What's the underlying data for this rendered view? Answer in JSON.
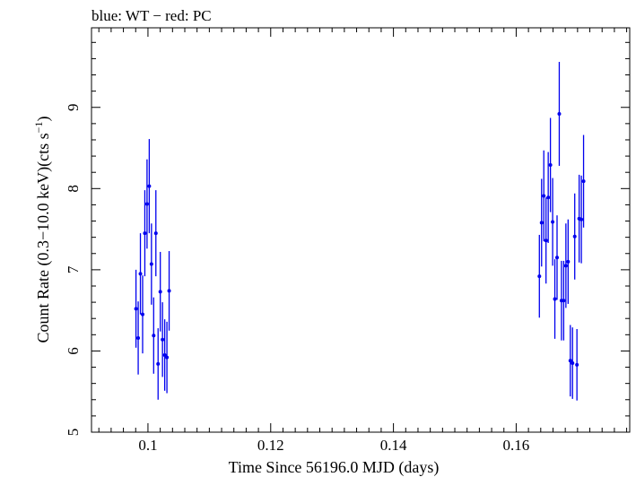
{
  "chart_data": {
    "type": "scatter",
    "title": "blue: WT − red: PC",
    "xlabel": "Time Since 56196.0 MJD (days)",
    "ylabel_main": "Count Rate (0.3−10.0 keV)(cts s",
    "ylabel_sup": "−1",
    "ylabel_end": ")",
    "xlim": [
      0.0908,
      0.1785
    ],
    "ylim": [
      5.0,
      9.98
    ],
    "xticks": [
      {
        "value": 0.1,
        "label": "0.1"
      },
      {
        "value": 0.12,
        "label": "0.12"
      },
      {
        "value": 0.14,
        "label": "0.14"
      },
      {
        "value": 0.16,
        "label": "0.16"
      }
    ],
    "yticks": [
      {
        "value": 5,
        "label": "5"
      },
      {
        "value": 6,
        "label": "6"
      },
      {
        "value": 7,
        "label": "7"
      },
      {
        "value": 8,
        "label": "8"
      },
      {
        "value": 9,
        "label": "9"
      }
    ],
    "grid": false,
    "series": [
      {
        "color": "#0000ee",
        "points": [
          {
            "x": 0.09805,
            "y": 6.52,
            "yerr": 0.48,
            "xerr": 0.00018
          },
          {
            "x": 0.09841,
            "y": 6.16,
            "yerr": 0.45,
            "xerr": 0.00018
          },
          {
            "x": 0.09877,
            "y": 6.95,
            "yerr": 0.5,
            "xerr": 0.00018
          },
          {
            "x": 0.09913,
            "y": 6.45,
            "yerr": 0.48,
            "xerr": 0.00018
          },
          {
            "x": 0.09949,
            "y": 7.45,
            "yerr": 0.53,
            "xerr": 0.00018
          },
          {
            "x": 0.09985,
            "y": 7.81,
            "yerr": 0.55,
            "xerr": 0.00018
          },
          {
            "x": 0.10021,
            "y": 8.03,
            "yerr": 0.58,
            "xerr": 0.00018
          },
          {
            "x": 0.10057,
            "y": 7.07,
            "yerr": 0.5,
            "xerr": 0.00018
          },
          {
            "x": 0.10093,
            "y": 6.19,
            "yerr": 0.47,
            "xerr": 0.00018
          },
          {
            "x": 0.10129,
            "y": 7.45,
            "yerr": 0.53,
            "xerr": 0.00018
          },
          {
            "x": 0.10165,
            "y": 5.84,
            "yerr": 0.44,
            "xerr": 0.00018
          },
          {
            "x": 0.10201,
            "y": 6.73,
            "yerr": 0.49,
            "xerr": 0.00018
          },
          {
            "x": 0.10237,
            "y": 6.14,
            "yerr": 0.46,
            "xerr": 0.00018
          },
          {
            "x": 0.10273,
            "y": 5.95,
            "yerr": 0.44,
            "xerr": 0.00018
          },
          {
            "x": 0.10309,
            "y": 5.92,
            "yerr": 0.44,
            "xerr": 0.00018
          },
          {
            "x": 0.10345,
            "y": 6.74,
            "yerr": 0.49,
            "xerr": 0.00018
          },
          {
            "x": 0.16378,
            "y": 6.92,
            "yerr": 0.51,
            "xerr": 0.00018
          },
          {
            "x": 0.16414,
            "y": 7.58,
            "yerr": 0.54,
            "xerr": 0.00018
          },
          {
            "x": 0.1645,
            "y": 7.91,
            "yerr": 0.56,
            "xerr": 0.00018
          },
          {
            "x": 0.16486,
            "y": 7.36,
            "yerr": 0.53,
            "xerr": 0.00018
          },
          {
            "x": 0.16522,
            "y": 7.89,
            "yerr": 0.56,
            "xerr": 0.00018
          },
          {
            "x": 0.16558,
            "y": 8.29,
            "yerr": 0.58,
            "xerr": 0.00018
          },
          {
            "x": 0.16594,
            "y": 7.59,
            "yerr": 0.54,
            "xerr": 0.00018
          },
          {
            "x": 0.1663,
            "y": 6.64,
            "yerr": 0.49,
            "xerr": 0.00018
          },
          {
            "x": 0.16666,
            "y": 7.15,
            "yerr": 0.52,
            "xerr": 0.00018
          },
          {
            "x": 0.16702,
            "y": 8.92,
            "yerr": 0.64,
            "xerr": 0.00018
          },
          {
            "x": 0.16738,
            "y": 6.62,
            "yerr": 0.49,
            "xerr": 0.00018
          },
          {
            "x": 0.16774,
            "y": 6.62,
            "yerr": 0.49,
            "xerr": 0.00018
          },
          {
            "x": 0.1681,
            "y": 7.05,
            "yerr": 0.52,
            "xerr": 0.00018
          },
          {
            "x": 0.16846,
            "y": 7.1,
            "yerr": 0.52,
            "xerr": 0.00018
          },
          {
            "x": 0.16882,
            "y": 5.88,
            "yerr": 0.44,
            "xerr": 0.00018
          },
          {
            "x": 0.16918,
            "y": 5.85,
            "yerr": 0.44,
            "xerr": 0.00018
          },
          {
            "x": 0.16954,
            "y": 7.41,
            "yerr": 0.53,
            "xerr": 0.00018
          },
          {
            "x": 0.1699,
            "y": 5.83,
            "yerr": 0.44,
            "xerr": 0.00018
          },
          {
            "x": 0.17026,
            "y": 7.63,
            "yerr": 0.54,
            "xerr": 0.00018
          },
          {
            "x": 0.17062,
            "y": 7.62,
            "yerr": 0.54,
            "xerr": 0.00018
          },
          {
            "x": 0.17098,
            "y": 8.09,
            "yerr": 0.57,
            "xerr": 0.00018
          }
        ]
      }
    ]
  }
}
